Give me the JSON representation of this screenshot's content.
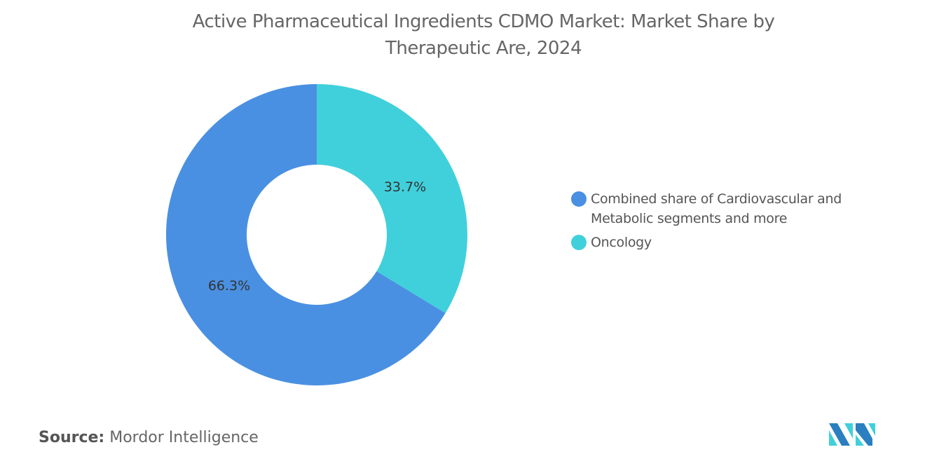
{
  "chart_data": {
    "type": "pie",
    "variant": "donut",
    "title": "Active Pharmaceutical Ingredients CDMO Market: Market Share by Therapeutic Are, 2024",
    "title_lines": [
      "Active Pharmaceutical Ingredients CDMO Market: Market Share by",
      "Therapeutic Are, 2024"
    ],
    "categories": [
      "Combined share of Cardiovascular and Metabolic segments and more",
      "Oncology"
    ],
    "values": [
      66.3,
      33.7
    ],
    "data_labels": [
      "66.3%",
      "33.7%"
    ],
    "colors": [
      "#4A90E2",
      "#40D0DB"
    ],
    "legend_position": "right"
  },
  "source": {
    "label": "Source:",
    "value": "Mordor Intelligence"
  },
  "logo": {
    "text": "Mordor Intelligence logo",
    "colors": [
      "#2A7FC0",
      "#40D0DB"
    ]
  }
}
